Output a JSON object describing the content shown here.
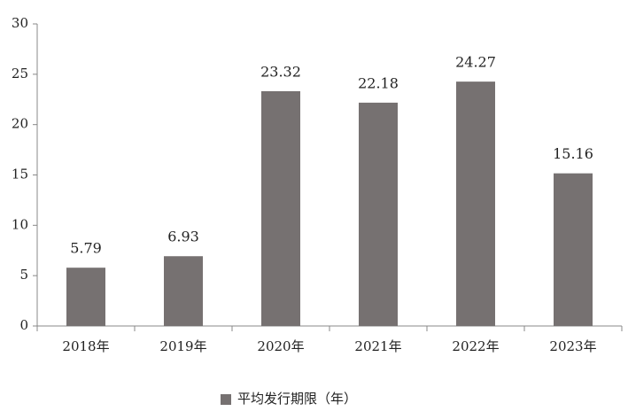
{
  "chart_data": {
    "type": "bar",
    "categories": [
      "2018年",
      "2019年",
      "2020年",
      "2021年",
      "2022年",
      "2023年"
    ],
    "series": [
      {
        "name": "平均发行期限（年）",
        "color": "#767171",
        "values": [
          5.79,
          6.93,
          23.32,
          22.18,
          24.27,
          15.16
        ]
      }
    ],
    "ylim": [
      0,
      30
    ],
    "yticks": [
      0,
      5,
      10,
      15,
      20,
      25,
      30
    ],
    "legend": "bottom"
  }
}
